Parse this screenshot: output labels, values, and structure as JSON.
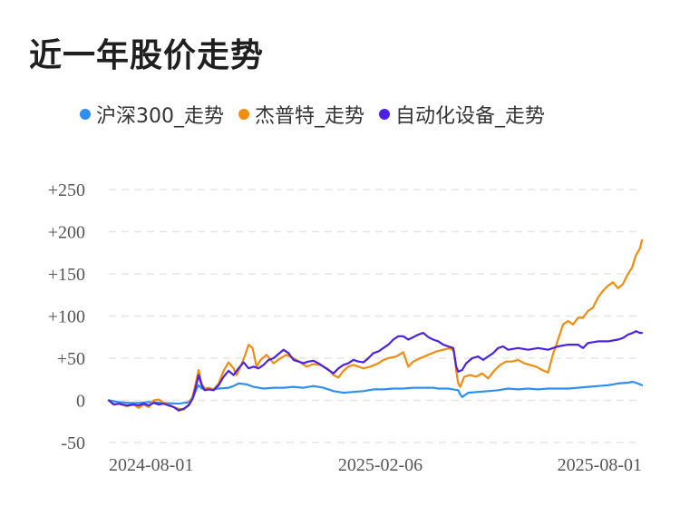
{
  "title": "近一年股价走势",
  "legend": [
    {
      "name": "沪深300_走势",
      "color": "#2f8ff0"
    },
    {
      "name": "杰普特_走势",
      "color": "#f08c10"
    },
    {
      "name": "自动化设备_走势",
      "color": "#4b22e0"
    }
  ],
  "chart_data": {
    "type": "line",
    "title": "近一年股价走势",
    "xlabel": "",
    "ylabel": "",
    "x_ticks": [
      "2024-08-01",
      "2025-02-06",
      "2025-08-01"
    ],
    "y_ticks": [
      "+250",
      "+200",
      "+150",
      "+100",
      "+50",
      "0",
      "-50"
    ],
    "ylim": [
      -50,
      250
    ],
    "grid": true,
    "legend_position": "top",
    "series": [
      {
        "name": "沪深300_走势",
        "color": "#2f8ff0",
        "points": [
          [
            0,
            0
          ],
          [
            10,
            -2
          ],
          [
            20,
            -3
          ],
          [
            30,
            -3
          ],
          [
            40,
            -2
          ],
          [
            55,
            -3
          ],
          [
            70,
            -4
          ],
          [
            80,
            -2
          ],
          [
            85,
            5
          ],
          [
            88,
            14
          ],
          [
            90,
            18
          ],
          [
            93,
            14
          ],
          [
            100,
            13
          ],
          [
            110,
            14
          ],
          [
            120,
            15
          ],
          [
            125,
            17
          ],
          [
            130,
            20
          ],
          [
            138,
            19
          ],
          [
            145,
            16
          ],
          [
            155,
            14
          ],
          [
            165,
            15
          ],
          [
            175,
            15
          ],
          [
            185,
            16
          ],
          [
            195,
            15
          ],
          [
            205,
            17
          ],
          [
            215,
            15
          ],
          [
            225,
            11
          ],
          [
            235,
            9
          ],
          [
            245,
            10
          ],
          [
            255,
            11
          ],
          [
            265,
            13
          ],
          [
            275,
            13
          ],
          [
            285,
            14
          ],
          [
            295,
            14
          ],
          [
            305,
            15
          ],
          [
            315,
            15
          ],
          [
            325,
            15
          ],
          [
            330,
            14
          ],
          [
            340,
            14
          ],
          [
            345,
            13
          ],
          [
            350,
            12
          ],
          [
            352,
            7
          ],
          [
            354,
            4
          ],
          [
            360,
            9
          ],
          [
            370,
            10
          ],
          [
            380,
            11
          ],
          [
            390,
            12
          ],
          [
            400,
            14
          ],
          [
            410,
            13
          ],
          [
            420,
            14
          ],
          [
            430,
            13
          ],
          [
            440,
            14
          ],
          [
            450,
            14
          ],
          [
            460,
            14
          ],
          [
            470,
            15
          ],
          [
            480,
            16
          ],
          [
            490,
            17
          ],
          [
            500,
            18
          ],
          [
            510,
            20
          ],
          [
            520,
            21
          ],
          [
            525,
            22
          ],
          [
            530,
            20
          ],
          [
            534,
            18
          ]
        ]
      },
      {
        "name": "杰普特_走势",
        "color": "#f08c10",
        "points": [
          [
            0,
            0
          ],
          [
            5,
            -5
          ],
          [
            10,
            -4
          ],
          [
            18,
            -7
          ],
          [
            25,
            -5
          ],
          [
            30,
            -9
          ],
          [
            35,
            -5
          ],
          [
            40,
            -8
          ],
          [
            45,
            0
          ],
          [
            50,
            1
          ],
          [
            55,
            -3
          ],
          [
            60,
            -5
          ],
          [
            65,
            -8
          ],
          [
            70,
            -10
          ],
          [
            75,
            -11
          ],
          [
            80,
            -5
          ],
          [
            84,
            5
          ],
          [
            87,
            20
          ],
          [
            90,
            36
          ],
          [
            93,
            20
          ],
          [
            96,
            14
          ],
          [
            100,
            15
          ],
          [
            105,
            13
          ],
          [
            110,
            20
          ],
          [
            115,
            35
          ],
          [
            120,
            45
          ],
          [
            125,
            38
          ],
          [
            128,
            30
          ],
          [
            132,
            40
          ],
          [
            136,
            52
          ],
          [
            140,
            66
          ],
          [
            144,
            62
          ],
          [
            148,
            40
          ],
          [
            152,
            48
          ],
          [
            158,
            54
          ],
          [
            165,
            44
          ],
          [
            172,
            50
          ],
          [
            178,
            54
          ],
          [
            185,
            50
          ],
          [
            192,
            45
          ],
          [
            198,
            40
          ],
          [
            205,
            43
          ],
          [
            212,
            42
          ],
          [
            220,
            37
          ],
          [
            225,
            30
          ],
          [
            230,
            27
          ],
          [
            235,
            35
          ],
          [
            240,
            40
          ],
          [
            245,
            42
          ],
          [
            250,
            40
          ],
          [
            255,
            38
          ],
          [
            262,
            40
          ],
          [
            270,
            44
          ],
          [
            275,
            48
          ],
          [
            280,
            50
          ],
          [
            288,
            52
          ],
          [
            295,
            57
          ],
          [
            300,
            40
          ],
          [
            305,
            46
          ],
          [
            312,
            50
          ],
          [
            320,
            54
          ],
          [
            328,
            58
          ],
          [
            335,
            60
          ],
          [
            342,
            62
          ],
          [
            346,
            58
          ],
          [
            348,
            35
          ],
          [
            350,
            20
          ],
          [
            352,
            16
          ],
          [
            356,
            28
          ],
          [
            362,
            30
          ],
          [
            368,
            28
          ],
          [
            374,
            32
          ],
          [
            380,
            26
          ],
          [
            386,
            35
          ],
          [
            392,
            42
          ],
          [
            398,
            46
          ],
          [
            404,
            46
          ],
          [
            410,
            48
          ],
          [
            416,
            44
          ],
          [
            422,
            42
          ],
          [
            428,
            40
          ],
          [
            434,
            36
          ],
          [
            440,
            33
          ],
          [
            445,
            55
          ],
          [
            450,
            72
          ],
          [
            455,
            90
          ],
          [
            460,
            94
          ],
          [
            465,
            90
          ],
          [
            470,
            98
          ],
          [
            475,
            98
          ],
          [
            480,
            106
          ],
          [
            485,
            110
          ],
          [
            490,
            122
          ],
          [
            495,
            130
          ],
          [
            500,
            136
          ],
          [
            505,
            140
          ],
          [
            510,
            133
          ],
          [
            515,
            138
          ],
          [
            520,
            150
          ],
          [
            524,
            157
          ],
          [
            528,
            172
          ],
          [
            532,
            180
          ],
          [
            534,
            190
          ]
        ]
      },
      {
        "name": "自动化设备_走势",
        "color": "#4b22e0",
        "points": [
          [
            0,
            0
          ],
          [
            5,
            -5
          ],
          [
            10,
            -4
          ],
          [
            18,
            -6
          ],
          [
            25,
            -5
          ],
          [
            30,
            -6
          ],
          [
            35,
            -4
          ],
          [
            40,
            -6
          ],
          [
            45,
            -3
          ],
          [
            50,
            -5
          ],
          [
            55,
            -4
          ],
          [
            60,
            -6
          ],
          [
            65,
            -8
          ],
          [
            70,
            -12
          ],
          [
            75,
            -10
          ],
          [
            80,
            -6
          ],
          [
            84,
            2
          ],
          [
            87,
            15
          ],
          [
            90,
            30
          ],
          [
            93,
            18
          ],
          [
            96,
            12
          ],
          [
            100,
            13
          ],
          [
            105,
            12
          ],
          [
            110,
            18
          ],
          [
            115,
            28
          ],
          [
            120,
            35
          ],
          [
            125,
            30
          ],
          [
            130,
            38
          ],
          [
            135,
            45
          ],
          [
            140,
            38
          ],
          [
            145,
            40
          ],
          [
            150,
            38
          ],
          [
            155,
            42
          ],
          [
            160,
            48
          ],
          [
            165,
            50
          ],
          [
            170,
            55
          ],
          [
            175,
            60
          ],
          [
            180,
            56
          ],
          [
            185,
            48
          ],
          [
            190,
            46
          ],
          [
            195,
            44
          ],
          [
            200,
            46
          ],
          [
            205,
            47
          ],
          [
            210,
            44
          ],
          [
            215,
            40
          ],
          [
            220,
            36
          ],
          [
            225,
            32
          ],
          [
            230,
            38
          ],
          [
            235,
            42
          ],
          [
            240,
            44
          ],
          [
            245,
            48
          ],
          [
            250,
            46
          ],
          [
            255,
            45
          ],
          [
            260,
            50
          ],
          [
            265,
            56
          ],
          [
            270,
            58
          ],
          [
            275,
            62
          ],
          [
            280,
            66
          ],
          [
            285,
            72
          ],
          [
            290,
            76
          ],
          [
            295,
            76
          ],
          [
            300,
            72
          ],
          [
            305,
            75
          ],
          [
            310,
            78
          ],
          [
            315,
            80
          ],
          [
            320,
            75
          ],
          [
            325,
            72
          ],
          [
            330,
            70
          ],
          [
            335,
            66
          ],
          [
            340,
            64
          ],
          [
            345,
            62
          ],
          [
            348,
            40
          ],
          [
            350,
            34
          ],
          [
            354,
            36
          ],
          [
            358,
            44
          ],
          [
            364,
            50
          ],
          [
            370,
            52
          ],
          [
            375,
            48
          ],
          [
            380,
            52
          ],
          [
            385,
            56
          ],
          [
            390,
            62
          ],
          [
            395,
            64
          ],
          [
            400,
            60
          ],
          [
            410,
            62
          ],
          [
            420,
            60
          ],
          [
            430,
            62
          ],
          [
            440,
            60
          ],
          [
            445,
            62
          ],
          [
            450,
            64
          ],
          [
            460,
            66
          ],
          [
            470,
            66
          ],
          [
            475,
            62
          ],
          [
            480,
            68
          ],
          [
            490,
            70
          ],
          [
            500,
            70
          ],
          [
            510,
            72
          ],
          [
            515,
            74
          ],
          [
            520,
            78
          ],
          [
            525,
            80
          ],
          [
            528,
            82
          ],
          [
            532,
            80
          ],
          [
            534,
            80
          ]
        ]
      }
    ]
  }
}
